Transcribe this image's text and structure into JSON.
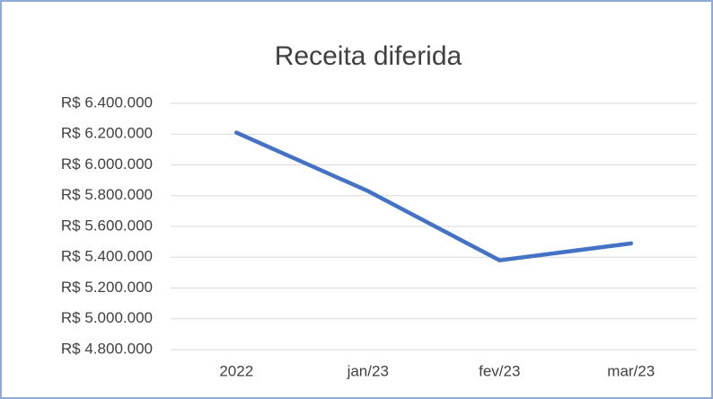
{
  "chart_data": {
    "type": "line",
    "title": "Receita diferida",
    "categories": [
      "2022",
      "jan/23",
      "fev/23",
      "mar/23"
    ],
    "series": [
      {
        "name": "Receita diferida",
        "color": "#4472c4",
        "values": [
          6210000,
          5830000,
          5380000,
          5490000
        ]
      }
    ],
    "ylim": [
      4800000,
      6400000
    ],
    "yticks": [
      {
        "value": 4800000,
        "label": "R$ 4.800.000"
      },
      {
        "value": 5000000,
        "label": "R$ 5.000.000"
      },
      {
        "value": 5200000,
        "label": "R$ 5.200.000"
      },
      {
        "value": 5400000,
        "label": "R$ 5.400.000"
      },
      {
        "value": 5600000,
        "label": "R$ 5.600.000"
      },
      {
        "value": 5800000,
        "label": "R$ 5.800.000"
      },
      {
        "value": 6000000,
        "label": "R$ 6.000.000"
      },
      {
        "value": 6200000,
        "label": "R$ 6.200.000"
      },
      {
        "value": 6400000,
        "label": "R$ 6.400.000"
      }
    ],
    "grid": true
  }
}
